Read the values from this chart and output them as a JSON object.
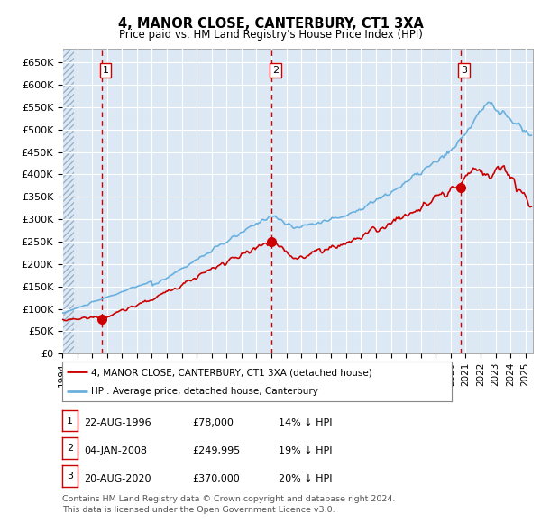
{
  "title": "4, MANOR CLOSE, CANTERBURY, CT1 3XA",
  "subtitle": "Price paid vs. HM Land Registry's House Price Index (HPI)",
  "ylim": [
    0,
    680000
  ],
  "yticks": [
    0,
    50000,
    100000,
    150000,
    200000,
    250000,
    300000,
    350000,
    400000,
    450000,
    500000,
    550000,
    600000,
    650000
  ],
  "ytick_labels": [
    "£0",
    "£50K",
    "£100K",
    "£150K",
    "£200K",
    "£250K",
    "£300K",
    "£350K",
    "£400K",
    "£450K",
    "£500K",
    "£550K",
    "£600K",
    "£650K"
  ],
  "hpi_color": "#6ab0de",
  "price_color": "#cc0000",
  "vline_color": "#cc0000",
  "bg_color": "#dce9f5",
  "sale_dates": [
    1996.65,
    2008.02,
    2020.65
  ],
  "sale_prices": [
    78000,
    249995,
    370000
  ],
  "sale_labels": [
    "1",
    "2",
    "3"
  ],
  "legend_label_price": "4, MANOR CLOSE, CANTERBURY, CT1 3XA (detached house)",
  "legend_label_hpi": "HPI: Average price, detached house, Canterbury",
  "table_rows": [
    [
      "1",
      "22-AUG-1996",
      "£78,000",
      "14% ↓ HPI"
    ],
    [
      "2",
      "04-JAN-2008",
      "£249,995",
      "19% ↓ HPI"
    ],
    [
      "3",
      "20-AUG-2020",
      "£370,000",
      "20% ↓ HPI"
    ]
  ],
  "footer": "Contains HM Land Registry data © Crown copyright and database right 2024.\nThis data is licensed under the Open Government Licence v3.0.",
  "xmin": 1994.0,
  "xmax": 2025.5
}
